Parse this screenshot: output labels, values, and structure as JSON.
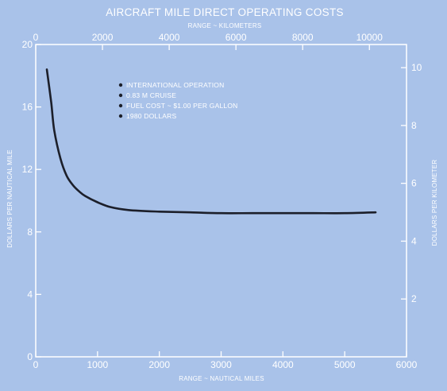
{
  "chart_data": {
    "type": "line",
    "title": "AIRCRAFT MILE DIRECT OPERATING COSTS",
    "top_xlabel": "RANGE ~ KILOMETERS",
    "xlabel": "RANGE ~ NAUTICAL MILES",
    "ylabel_left": "DOLLARS PER NAUTICAL MILE",
    "ylabel_right": "DOLLARS PER KILOMETER",
    "xlim": [
      0,
      6000
    ],
    "ylim": [
      0,
      20
    ],
    "top_xlim": [
      0,
      11112
    ],
    "right_ylim": [
      0,
      10.8
    ],
    "x_ticks": [
      {
        "value": 0,
        "label": "0"
      },
      {
        "value": 1000,
        "label": "1000"
      },
      {
        "value": 2000,
        "label": "2000"
      },
      {
        "value": 3000,
        "label": "3000"
      },
      {
        "value": 4000,
        "label": "4000"
      },
      {
        "value": 5000,
        "label": "5000"
      },
      {
        "value": 6000,
        "label": "6000"
      }
    ],
    "y_ticks": [
      {
        "value": 0,
        "label": "0"
      },
      {
        "value": 4,
        "label": "4"
      },
      {
        "value": 8,
        "label": "8"
      },
      {
        "value": 12,
        "label": "12"
      },
      {
        "value": 16,
        "label": "16"
      },
      {
        "value": 20,
        "label": "20"
      }
    ],
    "top_x_ticks": [
      {
        "value": 0,
        "label": "0"
      },
      {
        "value": 2000,
        "label": "2000"
      },
      {
        "value": 4000,
        "label": "4000"
      },
      {
        "value": 6000,
        "label": "6000"
      },
      {
        "value": 8000,
        "label": "8000"
      },
      {
        "value": 10000,
        "label": "10000"
      }
    ],
    "right_y_ticks": [
      {
        "value": 2,
        "label": "2"
      },
      {
        "value": 4,
        "label": "4"
      },
      {
        "value": 6,
        "label": "6"
      },
      {
        "value": 8,
        "label": "8"
      },
      {
        "value": 10,
        "label": "10"
      }
    ],
    "annotations": [
      "INTERNATIONAL OPERATION",
      "0.83 M CRUISE",
      "FUEL COST ~ $1.00 PER GALLON",
      "1980 DOLLARS"
    ],
    "series": [
      {
        "x": [
          180,
          250,
          300,
          400,
          500,
          600,
          700,
          800,
          1000,
          1200,
          1500,
          2000,
          2500,
          3000,
          3500,
          4000,
          4500,
          5000,
          5500
        ],
        "y": [
          18.4,
          16.3,
          14.5,
          12.7,
          11.6,
          11.0,
          10.6,
          10.3,
          9.9,
          9.6,
          9.4,
          9.3,
          9.25,
          9.2,
          9.2,
          9.2,
          9.2,
          9.2,
          9.25
        ]
      }
    ],
    "grid": false,
    "colors": {
      "background": "#a9c2e9",
      "foreground": "#ffffff",
      "line": "#1c1f2a"
    }
  }
}
